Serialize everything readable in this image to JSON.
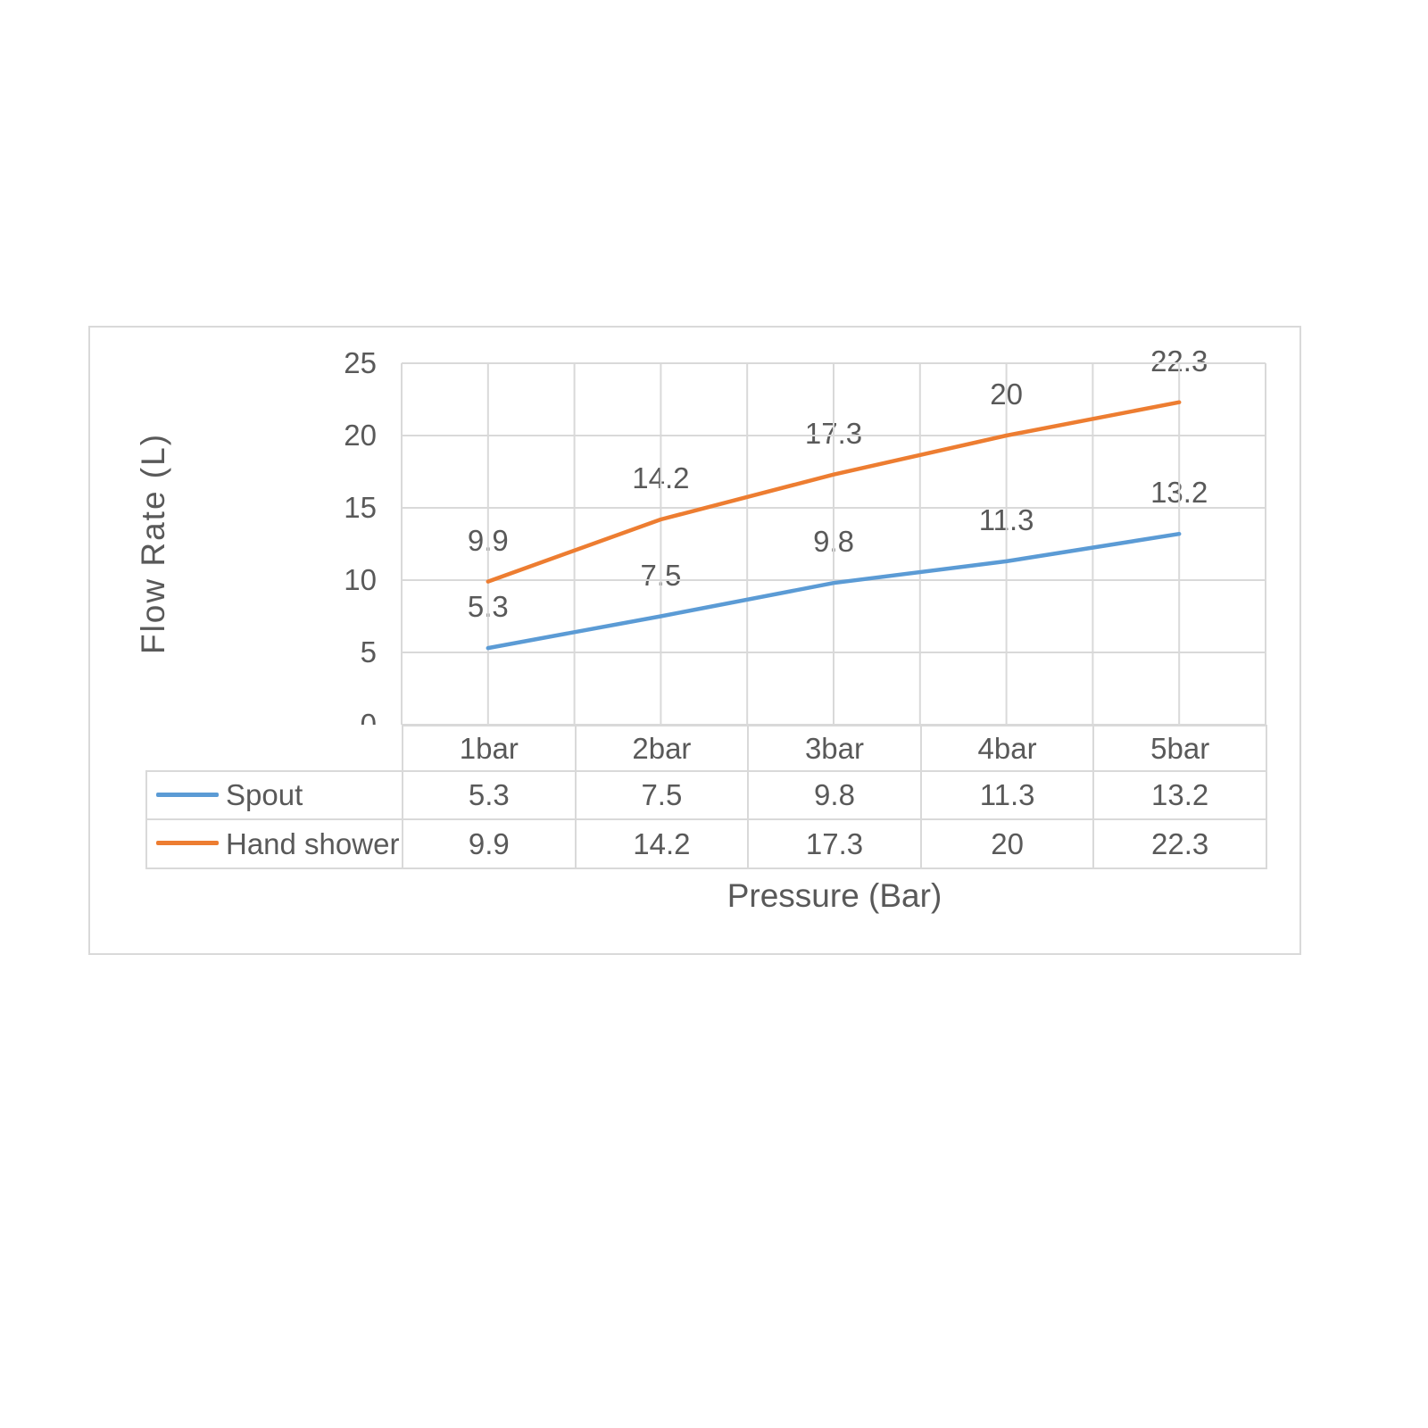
{
  "chart_data": {
    "type": "line",
    "title": "",
    "categories": [
      "1bar",
      "2bar",
      "3bar",
      "4bar",
      "5bar"
    ],
    "series": [
      {
        "name": "Spout",
        "color": "#5B9BD5",
        "values": [
          5.3,
          7.5,
          9.8,
          11.3,
          13.2
        ],
        "labels": [
          "5.3",
          "7.5",
          "9.8",
          "11.3",
          "13.2"
        ]
      },
      {
        "name": "Hand shower",
        "color": "#ED7D31",
        "values": [
          9.9,
          14.2,
          17.3,
          20,
          22.3
        ],
        "labels": [
          "9.9",
          "14.2",
          "17.3",
          "20",
          "22.3"
        ]
      }
    ],
    "xlabel": "Pressure (Bar)",
    "ylabel": "Flow Rate (L)",
    "ylim": [
      0,
      25
    ],
    "ytick_step": 5,
    "yticks": [
      "0",
      "5",
      "10",
      "15",
      "20",
      "25"
    ],
    "grid": true,
    "grid_color": "#D9D9D9",
    "text_color": "#595959",
    "background": "#ffffff",
    "legend_position": "table-left",
    "data_table_shown": true,
    "data_labels_shown": true
  }
}
